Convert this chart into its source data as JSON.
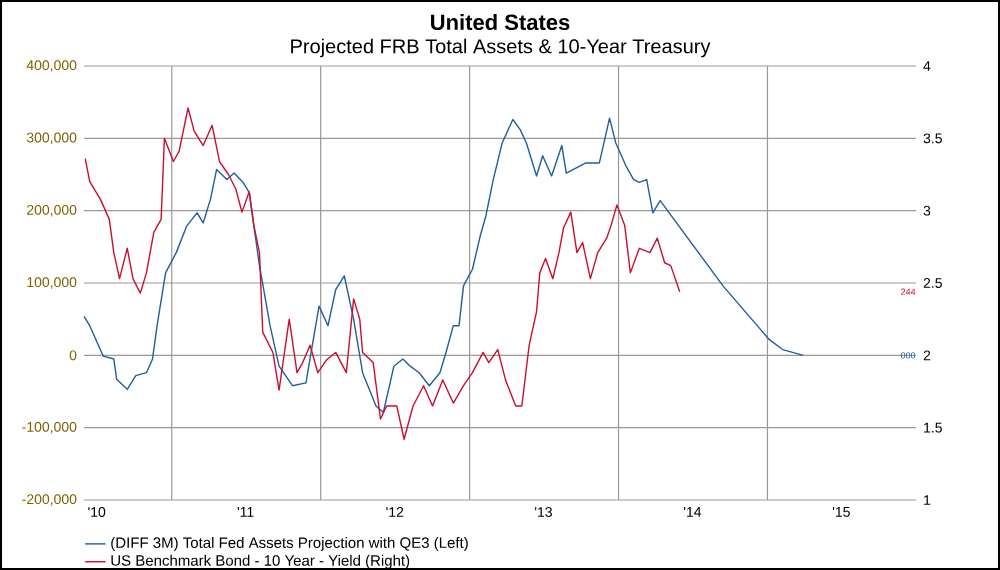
{
  "chart_data": {
    "type": "line",
    "title": "United States",
    "subtitle": "Projected FRB Total Assets & 10-Year Treasury",
    "xlim": [
      "2010-05-31",
      "2015-12-31"
    ],
    "xticks": [
      {
        "value": "2010-07-01",
        "label": "'10"
      },
      {
        "value": "2011-01-01",
        "label": null
      },
      {
        "value": "2011-07-01",
        "label": "'11"
      },
      {
        "value": "2012-01-01",
        "label": null
      },
      {
        "value": "2012-07-01",
        "label": "'12"
      },
      {
        "value": "2013-01-01",
        "label": null
      },
      {
        "value": "2013-07-01",
        "label": "'13"
      },
      {
        "value": "2014-01-01",
        "label": null
      },
      {
        "value": "2014-07-01",
        "label": "'14"
      },
      {
        "value": "2015-01-01",
        "label": null
      },
      {
        "value": "2015-07-01",
        "label": "'15"
      }
    ],
    "ylim": [
      -200000,
      400000
    ],
    "yticks": [
      {
        "value": -200000,
        "label": "-200,000"
      },
      {
        "value": -100000,
        "label": "-100,000"
      },
      {
        "value": 0,
        "label": "0"
      },
      {
        "value": 100000,
        "label": "100,000"
      },
      {
        "value": 200000,
        "label": "200,000"
      },
      {
        "value": 300000,
        "label": "300,000"
      },
      {
        "value": 400000,
        "label": "400,000"
      }
    ],
    "y2lim": [
      1,
      4
    ],
    "y2ticks": [
      1,
      1.5,
      2,
      2.5,
      3,
      3.5,
      4
    ],
    "grid": true,
    "legend": "bottom",
    "annotations": [
      "000",
      "244"
    ],
    "series": [
      {
        "name": "(DIFF 3M) Total Fed Assets Projection with QE3  (Left)",
        "color": "#1f5fa0",
        "x": [
          "2010-05-31",
          "2010-06-14",
          "2010-07-17",
          "2010-08-12",
          "2010-08-19",
          "2010-09-14",
          "2010-10-05",
          "2010-10-31",
          "2010-11-15",
          "2010-11-26",
          "2010-12-17",
          "2011-01-12",
          "2011-02-07",
          "2011-03-04",
          "2011-03-19",
          "2011-04-06",
          "2011-04-21",
          "2011-05-16",
          "2011-06-03",
          "2011-06-25",
          "2011-07-10",
          "2011-08-04",
          "2011-08-30",
          "2011-09-21",
          "2011-10-24",
          "2011-11-26",
          "2011-12-14",
          "2011-12-28",
          "2012-01-19",
          "2012-02-07",
          "2012-02-28",
          "2012-03-22",
          "2012-04-13",
          "2012-05-16",
          "2012-06-03",
          "2012-06-29",
          "2012-07-21",
          "2012-08-08",
          "2012-08-30",
          "2012-09-24",
          "2012-10-20",
          "2012-11-04",
          "2012-11-22",
          "2012-12-06",
          "2012-12-17",
          "2013-01-08",
          "2013-01-27",
          "2013-02-10",
          "2013-02-28",
          "2013-03-22",
          "2013-04-17",
          "2013-05-05",
          "2013-05-20",
          "2013-06-14",
          "2013-06-29",
          "2013-07-21",
          "2013-08-15",
          "2013-08-26",
          "2013-10-13",
          "2013-11-15",
          "2013-12-10",
          "2013-12-25",
          "2014-01-19",
          "2014-02-07",
          "2014-02-21",
          "2014-03-11",
          "2014-03-26",
          "2014-04-13",
          "2014-09-14",
          "2015-01-05",
          "2015-02-07",
          "2015-03-30"
        ],
        "values": [
          54000,
          41000,
          -1000,
          -5000,
          -33000,
          -47000,
          -28000,
          -24000,
          -5000,
          41000,
          114000,
          142000,
          179000,
          197000,
          183000,
          216000,
          257000,
          243000,
          252000,
          239000,
          225000,
          124000,
          41000,
          -15000,
          -42000,
          -38000,
          22000,
          68000,
          41000,
          91000,
          110000,
          50000,
          -24000,
          -70000,
          -79000,
          -15000,
          -5000,
          -15000,
          -24000,
          -42000,
          -24000,
          4000,
          41000,
          41000,
          96000,
          119000,
          165000,
          193000,
          243000,
          294000,
          326000,
          312000,
          294000,
          248000,
          276000,
          248000,
          290000,
          252000,
          266000,
          266000,
          328000,
          294000,
          262000,
          243000,
          239000,
          243000,
          197000,
          214000,
          96000,
          22000,
          8000,
          0
        ]
      },
      {
        "name": "US Benchmark Bond - 10 Year - Yield  (Right)",
        "color": "#c8102e",
        "axis": "y2",
        "x": [
          "2010-06-03",
          "2010-06-14",
          "2010-07-10",
          "2010-08-01",
          "2010-08-12",
          "2010-08-26",
          "2010-09-14",
          "2010-09-28",
          "2010-10-16",
          "2010-10-31",
          "2010-11-18",
          "2010-12-06",
          "2010-12-14",
          "2011-01-05",
          "2011-01-19",
          "2011-02-10",
          "2011-02-25",
          "2011-03-19",
          "2011-04-10",
          "2011-04-28",
          "2011-05-20",
          "2011-06-07",
          "2011-06-22",
          "2011-07-10",
          "2011-07-21",
          "2011-08-04",
          "2011-08-12",
          "2011-09-06",
          "2011-09-21",
          "2011-10-16",
          "2011-11-04",
          "2011-11-18",
          "2011-12-06",
          "2011-12-25",
          "2012-01-16",
          "2012-02-07",
          "2012-03-04",
          "2012-03-22",
          "2012-04-06",
          "2012-04-13",
          "2012-05-09",
          "2012-05-27",
          "2012-06-11",
          "2012-07-06",
          "2012-07-24",
          "2012-08-15",
          "2012-09-10",
          "2012-10-02",
          "2012-10-27",
          "2012-11-22",
          "2012-12-17",
          "2013-01-08",
          "2013-02-03",
          "2013-02-17",
          "2013-03-11",
          "2013-03-30",
          "2013-04-24",
          "2013-05-09",
          "2013-05-27",
          "2013-06-14",
          "2013-06-22",
          "2013-07-06",
          "2013-07-24",
          "2013-08-08",
          "2013-08-19",
          "2013-09-06",
          "2013-09-21",
          "2013-10-05",
          "2013-10-24",
          "2013-11-11",
          "2013-12-03",
          "2013-12-14",
          "2013-12-28",
          "2014-01-16",
          "2014-01-30",
          "2014-02-21",
          "2014-03-19",
          "2014-04-06",
          "2014-04-24",
          "2014-05-09",
          "2014-05-31"
        ],
        "values": [
          3.36,
          3.2,
          3.08,
          2.94,
          2.71,
          2.53,
          2.74,
          2.53,
          2.43,
          2.57,
          2.85,
          2.94,
          3.5,
          3.34,
          3.41,
          3.71,
          3.55,
          3.45,
          3.59,
          3.34,
          3.25,
          3.15,
          2.99,
          3.13,
          2.9,
          2.71,
          2.16,
          2.02,
          1.76,
          2.25,
          1.88,
          1.95,
          2.07,
          1.88,
          1.97,
          2.02,
          1.88,
          2.39,
          2.25,
          2.02,
          1.95,
          1.56,
          1.65,
          1.65,
          1.42,
          1.65,
          1.79,
          1.65,
          1.83,
          1.67,
          1.79,
          1.88,
          2.02,
          1.95,
          2.04,
          1.83,
          1.65,
          1.65,
          2.07,
          2.3,
          2.57,
          2.67,
          2.53,
          2.71,
          2.88,
          2.99,
          2.71,
          2.78,
          2.53,
          2.71,
          2.81,
          2.9,
          3.04,
          2.9,
          2.57,
          2.74,
          2.71,
          2.81,
          2.64,
          2.62,
          2.44
        ]
      }
    ]
  }
}
